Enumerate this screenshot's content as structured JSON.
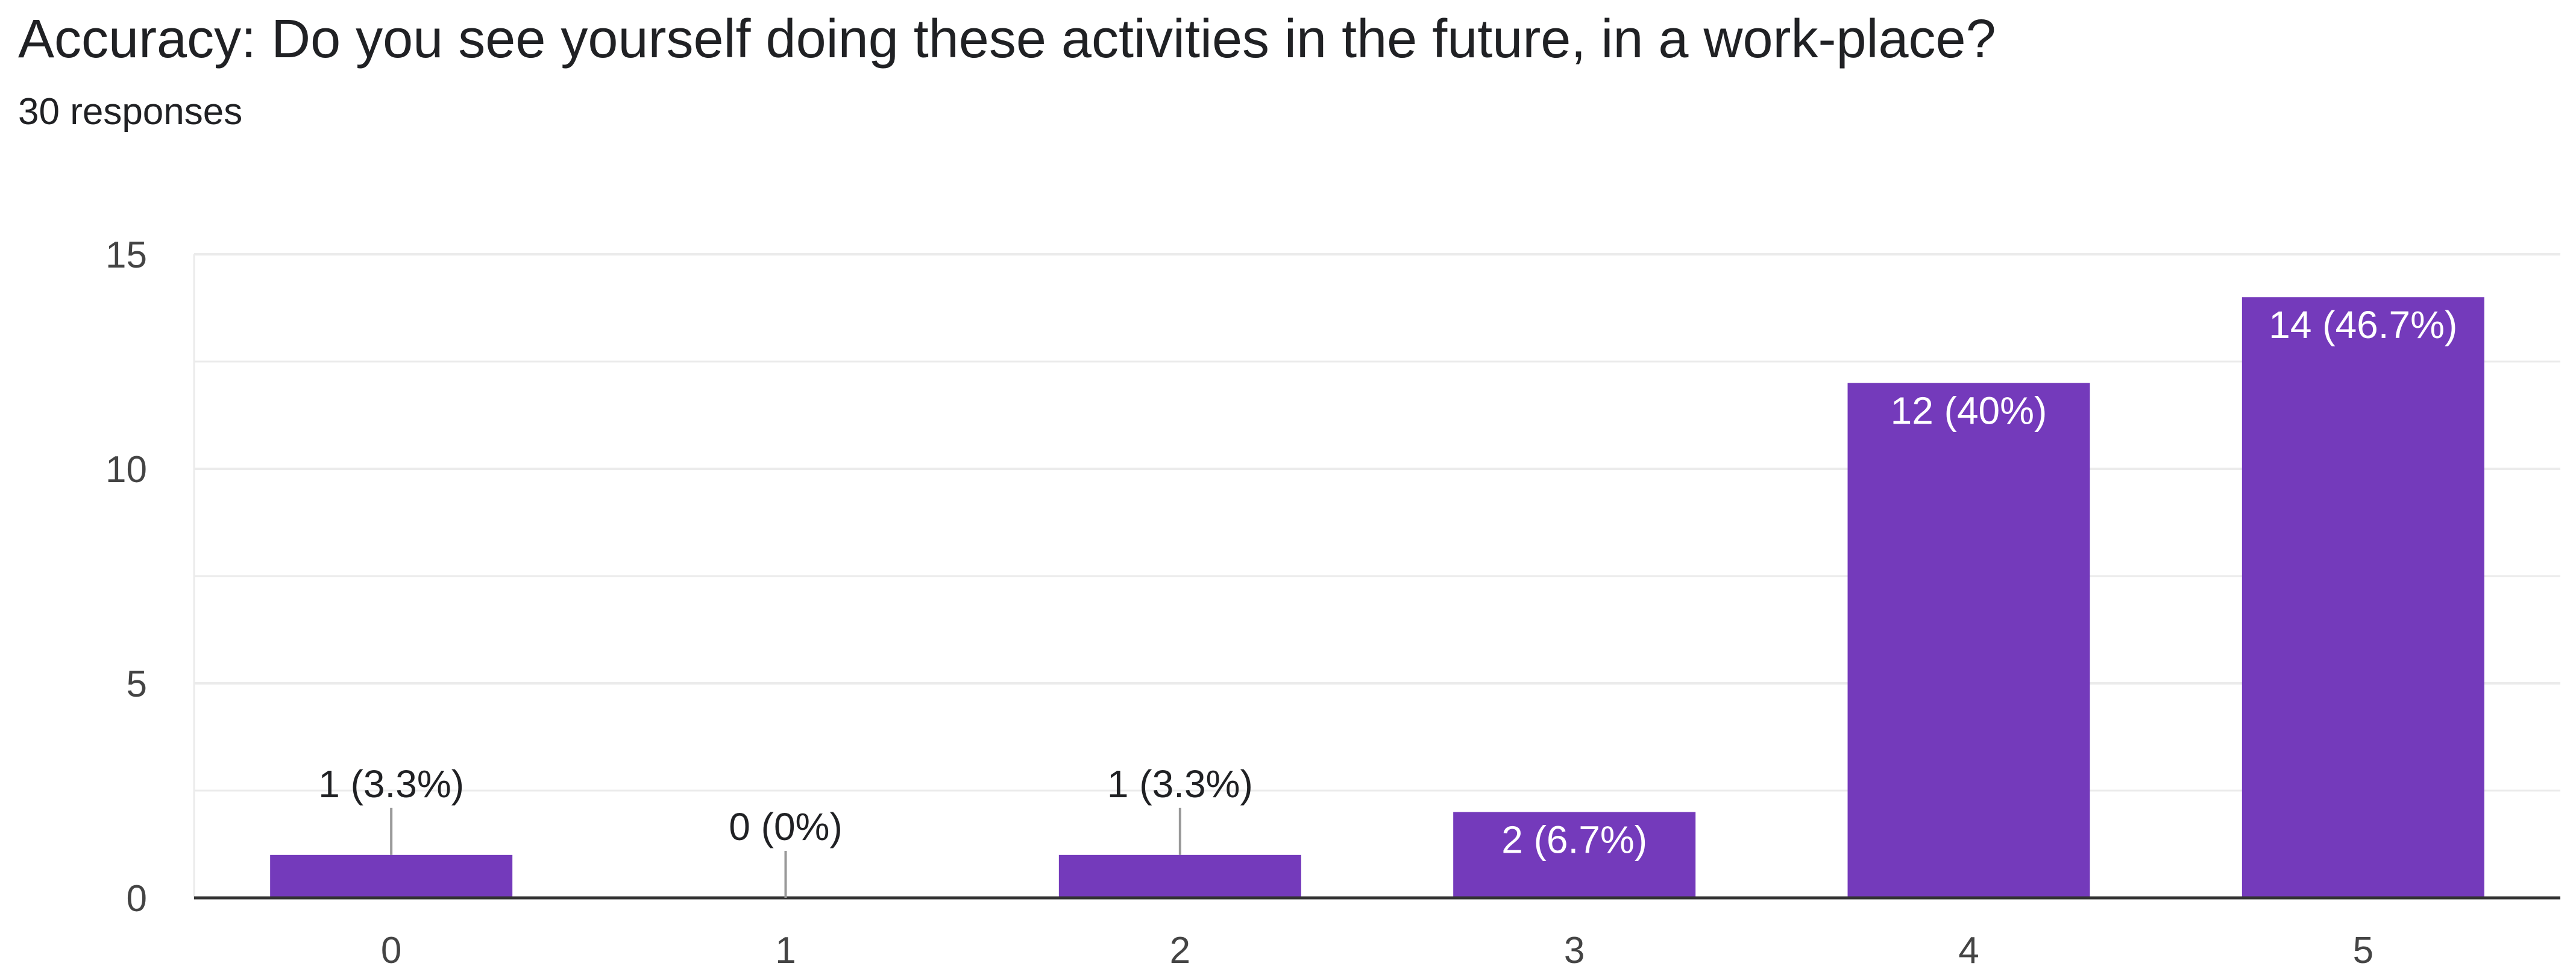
{
  "title": "Accuracy: Do you see yourself doing these activities in the future, in a work-place?",
  "subtitle": "30 responses",
  "colors": {
    "bar": "#743ABB",
    "grid": "#EBEBEB",
    "axis": "#333333",
    "label_inside": "#FFFFFF",
    "label_outside": "#202124",
    "leader": "#999999"
  },
  "chart_data": {
    "type": "bar",
    "categories": [
      "0",
      "1",
      "2",
      "3",
      "4",
      "5"
    ],
    "values": [
      1,
      0,
      1,
      2,
      12,
      14
    ],
    "data_labels": [
      "1 (3.3%)",
      "0 (0%)",
      "1 (3.3%)",
      "2 (6.7%)",
      "12 (40%)",
      "14 (46.7%)"
    ],
    "ylim": [
      0,
      15
    ],
    "yticks": [
      0,
      5,
      10,
      15
    ],
    "grid": true,
    "minor_grid": true,
    "xlabel": "",
    "ylabel": ""
  }
}
